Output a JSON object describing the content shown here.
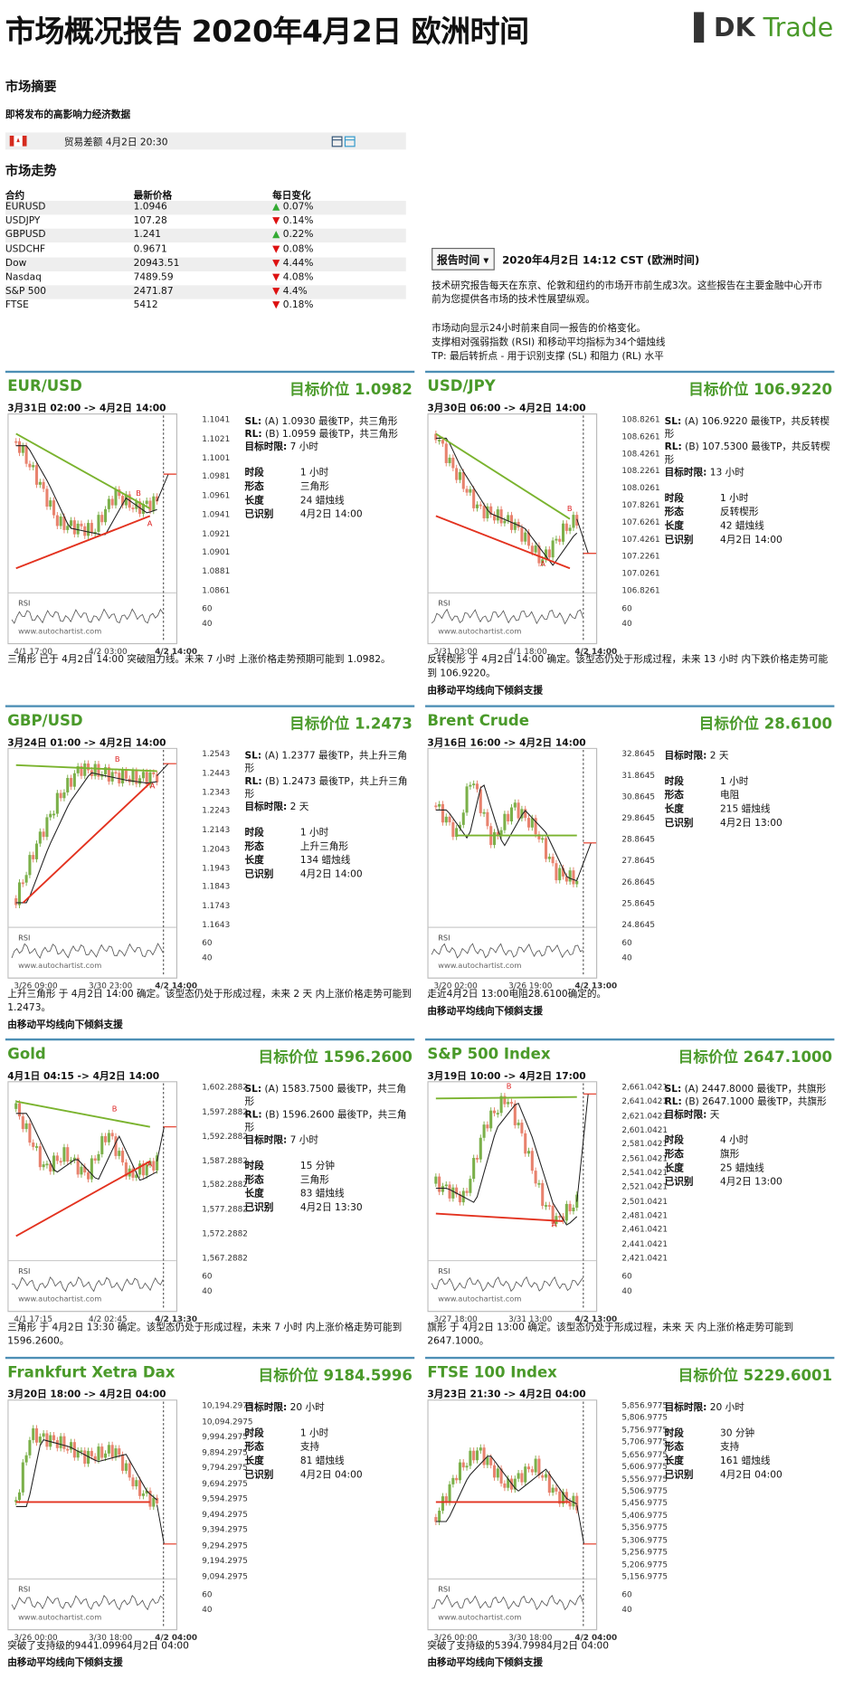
{
  "header": {
    "title": "市场概况报告 2020年4月2日 欧洲时间",
    "logo_mark": "DK",
    "logo_text": "Trade"
  },
  "summary": {
    "heading": "市场摘要",
    "subheading": "即将发布的高影响力经济数据",
    "event": "贸易差额 4月2日 20:30"
  },
  "trend": {
    "heading": "市场走势",
    "columns": [
      "合约",
      "最新价格",
      "每日变化"
    ],
    "rows": [
      {
        "name": "EURUSD",
        "price": "1.0946",
        "change": "0.07%",
        "direction": "up"
      },
      {
        "name": "USDJPY",
        "price": "107.28",
        "change": "0.14%",
        "direction": "down"
      },
      {
        "name": "GBPUSD",
        "price": "1.241",
        "change": "0.22%",
        "direction": "up"
      },
      {
        "name": "USDCHF",
        "price": "0.9671",
        "change": "0.08%",
        "direction": "down"
      },
      {
        "name": "Dow",
        "price": "20943.51",
        "change": "4.44%",
        "direction": "down"
      },
      {
        "name": "Nasdaq",
        "price": "7489.59",
        "change": "4.08%",
        "direction": "down"
      },
      {
        "name": "S&P 500",
        "price": "2471.87",
        "change": "4.4%",
        "direction": "down"
      },
      {
        "name": "FTSE",
        "price": "5412",
        "change": "0.18%",
        "direction": "down"
      }
    ]
  },
  "report": {
    "button": "报告时间",
    "time": "2020年4月2日 14:12 CST (欧洲时间)",
    "intro": "技术研究报告每天在东京、伦敦和纽约的市场开市前生成3次。这些报告在主要金融中心开市前为您提供各市场的技术性展望纵观。",
    "notes": [
      "市场动向显示24小时前来自同一报告的价格变化。",
      "支撑相对强弱指数 (RSI) 和移动平均指标为34个蜡烛线",
      "TP: 最后转折点 - 用于识别支撑 (SL) 和阻力 (RL) 水平"
    ]
  },
  "panels": [
    {
      "name": "EUR/USD",
      "target": "目标价位 1.0982",
      "range": "3月31日 02:00 -> 4月2日 14:00",
      "levels": [
        {
          "label": "SL:",
          "text": "(A) 1.0930 最後TP，共三角形"
        },
        {
          "label": "RL:",
          "text": "(B) 1.0959 最後TP，共三角形"
        },
        {
          "label": "目标时限:",
          "text": "7 小时"
        }
      ],
      "props": [
        [
          "时段",
          "1 小时"
        ],
        [
          "形态",
          "三角形"
        ],
        [
          "长度",
          "24 蜡烛线"
        ],
        [
          "已识别",
          "4月2日 14:00"
        ]
      ],
      "yticks": [
        "1.1041",
        "1.1021",
        "1.1001",
        "1.0981",
        "1.0961",
        "1.0941",
        "1.0921",
        "1.0901",
        "1.0881",
        "1.0861"
      ],
      "xticks": [
        "4/1 17:00",
        "4/2 03:00",
        "4/2 14:00"
      ],
      "points": [
        "A",
        "B"
      ],
      "desc": "三角形 已于 4月2日 14:00 突破阻力线。未来 7 小时 上涨价格走势预期可能到 1.0982。"
    },
    {
      "name": "USD/JPY",
      "target": "目标价位 106.9220",
      "range": "3月30日 06:00 -> 4月2日 14:00",
      "levels": [
        {
          "label": "SL:",
          "text": "(A) 106.9220 最後TP，共反转楔形"
        },
        {
          "label": "RL:",
          "text": "(B) 107.5300 最後TP，共反转楔形"
        },
        {
          "label": "目标时限:",
          "text": "13 小时"
        }
      ],
      "props": [
        [
          "时段",
          "1 小时"
        ],
        [
          "形态",
          "反转楔形"
        ],
        [
          "长度",
          "42 蜡烛线"
        ],
        [
          "已识别",
          "4月2日 14:00"
        ]
      ],
      "yticks": [
        "108.8261",
        "108.6261",
        "108.4261",
        "108.2261",
        "108.0261",
        "107.8261",
        "107.6261",
        "107.4261",
        "107.2261",
        "107.0261",
        "106.8261"
      ],
      "xticks": [
        "3/31 03:00",
        "4/1 18:00",
        "4/2 14:00"
      ],
      "points": [
        "A",
        "B"
      ],
      "desc": "反转楔形 于 4月2日 14:00 确定。该型态仍处于形成过程，未来 13 小时 内下跌价格走势可能到 106.9220。",
      "note": "由移动平均线向下倾斜支援"
    },
    {
      "name": "GBP/USD",
      "target": "目标价位 1.2473",
      "range": "3月24日 01:00 -> 4月2日 14:00",
      "levels": [
        {
          "label": "SL:",
          "text": "(A) 1.2377 最後TP，共上升三角形"
        },
        {
          "label": "RL:",
          "text": "(B) 1.2473 最後TP，共上升三角形"
        },
        {
          "label": "目标时限:",
          "text": "2 天"
        }
      ],
      "props": [
        [
          "时段",
          "1 小时"
        ],
        [
          "形态",
          "上升三角形"
        ],
        [
          "长度",
          "134 蜡烛线"
        ],
        [
          "已识别",
          "4月2日 14:00"
        ]
      ],
      "yticks": [
        "1.2543",
        "1.2443",
        "1.2343",
        "1.2243",
        "1.2143",
        "1.2043",
        "1.1943",
        "1.1843",
        "1.1743",
        "1.1643"
      ],
      "xticks": [
        "3/26 09:00",
        "3/30 23:00",
        "4/2 14:00"
      ],
      "points": [
        "A",
        "B"
      ],
      "desc": "上升三角形 于 4月2日 14:00 确定。该型态仍处于形成过程，未来 2 天 内上涨价格走势可能到 1.2473。",
      "note": "由移动平均线向下倾斜支援"
    },
    {
      "name": "Brent Crude",
      "target": "目标价位 28.6100",
      "range": "3月16日 16:00 -> 4月2日 14:00",
      "levels": [
        {
          "label": "目标时限:",
          "text": "2 天"
        }
      ],
      "props": [
        [
          "时段",
          "1 小时"
        ],
        [
          "形态",
          "电阻"
        ],
        [
          "长度",
          "215 蜡烛线"
        ],
        [
          "已识别",
          "4月2日 13:00"
        ]
      ],
      "yticks": [
        "32.8645",
        "31.8645",
        "30.8645",
        "29.8645",
        "28.8645",
        "27.8645",
        "26.8645",
        "25.8645",
        "24.8645"
      ],
      "xticks": [
        "3/20 02:00",
        "3/26 19:00",
        "4/2 13:00"
      ],
      "points": [],
      "desc": "走近4月2日 13:00电阻28.6100确定的。",
      "note": "由移动平均线向下倾斜支援"
    },
    {
      "name": "Gold",
      "target": "目标价位 1596.2600",
      "range": "4月1日 04:15 -> 4月2日 14:00",
      "levels": [
        {
          "label": "SL:",
          "text": "(A) 1583.7500 最後TP，共三角形"
        },
        {
          "label": "RL:",
          "text": "(B) 1596.2600 最後TP，共三角形"
        },
        {
          "label": "目标时限:",
          "text": "7 小时"
        }
      ],
      "props": [
        [
          "时段",
          "15 分钟"
        ],
        [
          "形态",
          "三角形"
        ],
        [
          "长度",
          "83 蜡烛线"
        ],
        [
          "已识别",
          "4月2日 13:30"
        ]
      ],
      "yticks": [
        "1,602.2882",
        "1,597.2882",
        "1,592.2882",
        "1,587.2882",
        "1,582.2882",
        "1,577.2882",
        "1,572.2882",
        "1,567.2882"
      ],
      "xticks": [
        "4/1 17:15",
        "4/2 02:45",
        "4/2 13:30"
      ],
      "points": [
        "A",
        "B"
      ],
      "desc": "三角形 于 4月2日 13:30 确定。该型态仍处于形成过程，未来 7 小时 内上涨价格走势可能到 1596.2600。"
    },
    {
      "name": "S&P 500 Index",
      "target": "目标价位 2647.1000",
      "range": "3月19日 10:00 -> 4月2日 17:00",
      "levels": [
        {
          "label": "SL:",
          "text": "(A) 2447.8000 最後TP，共旗形"
        },
        {
          "label": "RL:",
          "text": "(B) 2647.1000 最後TP，共旗形"
        },
        {
          "label": "目标时限:",
          "text": "天"
        }
      ],
      "props": [
        [
          "时段",
          "4 小时"
        ],
        [
          "形态",
          "旗形"
        ],
        [
          "长度",
          "25 蜡烛线"
        ],
        [
          "已识别",
          "4月2日 13:00"
        ]
      ],
      "yticks": [
        "2,661.0421",
        "2,641.0421",
        "2,621.0421",
        "2,601.0421",
        "2,581.0421",
        "2,561.0421",
        "2,541.0421",
        "2,521.0421",
        "2,501.0421",
        "2,481.0421",
        "2,461.0421",
        "2,441.0421",
        "2,421.0421"
      ],
      "xticks": [
        "3/27 18:00",
        "3/31 13:00",
        "4/2 13:00"
      ],
      "points": [
        "A",
        "B"
      ],
      "desc": "旗形 于 4月2日 13:00 确定。该型态仍处于形成过程，未来 天 内上涨价格走势可能到 2647.1000。"
    },
    {
      "name": "Frankfurt Xetra Dax",
      "target": "目标价位 9184.5996",
      "range": "3月20日 18:00 -> 4月2日 04:00",
      "levels": [
        {
          "label": "目标时限:",
          "text": "20 小时"
        }
      ],
      "props": [
        [
          "时段",
          "1 小时"
        ],
        [
          "形态",
          "支持"
        ],
        [
          "长度",
          "81 蜡烛线"
        ],
        [
          "已识别",
          "4月2日 04:00"
        ]
      ],
      "yticks": [
        "10,194.2975",
        "10,094.2975",
        "9,994.2975",
        "9,894.2975",
        "9,794.2975",
        "9,694.2975",
        "9,594.2975",
        "9,494.2975",
        "9,394.2975",
        "9,294.2975",
        "9,194.2975",
        "9,094.2975"
      ],
      "xticks": [
        "3/26 00:00",
        "3/30 18:00",
        "4/2 04:00"
      ],
      "points": [],
      "desc": "突破了支持级的9441.09964月2日 04:00",
      "note": "由移动平均线向下倾斜支援"
    },
    {
      "name": "FTSE 100 Index",
      "target": "目标价位 5229.6001",
      "range": "3月23日 21:30 -> 4月2日 04:00",
      "levels": [
        {
          "label": "目标时限:",
          "text": "20 小时"
        }
      ],
      "props": [
        [
          "时段",
          "30 分钟"
        ],
        [
          "形态",
          "支持"
        ],
        [
          "长度",
          "161 蜡烛线"
        ],
        [
          "已识别",
          "4月2日 04:00"
        ]
      ],
      "yticks": [
        "5,856.9775",
        "5,806.9775",
        "5,756.9775",
        "5,706.9775",
        "5,656.9775",
        "5,606.9775",
        "5,556.9775",
        "5,506.9775",
        "5,456.9775",
        "5,406.9775",
        "5,356.9775",
        "5,306.9775",
        "5,256.9775",
        "5,206.9775",
        "5,156.9775"
      ],
      "xticks": [
        "3/26 00:00",
        "3/30 18:00",
        "4/2 04:00"
      ],
      "points": [],
      "desc": "突破了支持级的5394.79984月2日 04:00",
      "note": "由移动平均线向下倾斜支援"
    }
  ],
  "chart_common": {
    "rsi": "RSI",
    "rsi_ticks": [
      "60",
      "40"
    ],
    "watermark": "www.autochartist.com"
  }
}
